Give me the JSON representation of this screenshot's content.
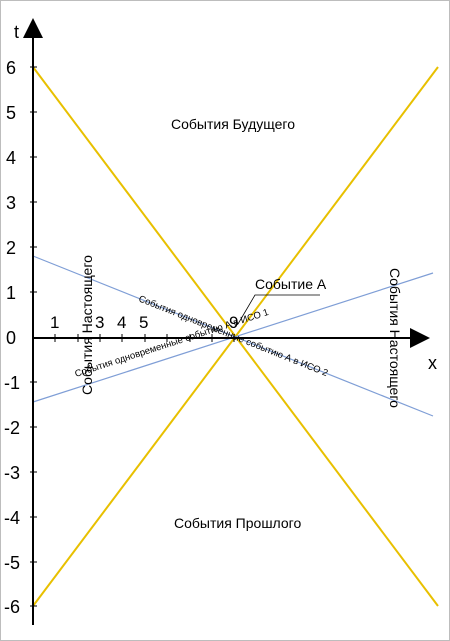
{
  "axes": {
    "x_label": "x",
    "t_label": "t",
    "y_ticks": [
      "6",
      "5",
      "4",
      "3",
      "2",
      "1",
      "0",
      "-1",
      "-2",
      "-3",
      "-4",
      "-5",
      "-6"
    ],
    "x_tick_labels": [
      "1",
      "3",
      "4",
      "5",
      "9"
    ]
  },
  "regions": {
    "future": "События Будущего",
    "past": "События Прошлого",
    "present_left": "События Настоящего",
    "present_right": "События Настоящего"
  },
  "event": {
    "label": "Событие A"
  },
  "simultaneity": {
    "line1": "События одновременные событию А в ИСО 1",
    "line2": "События одновременные событию А в ИСО 2"
  },
  "colors": {
    "light_cone": "#e8c000",
    "simultaneity_lines": "#7f9ed6",
    "axes": "#000000"
  }
}
